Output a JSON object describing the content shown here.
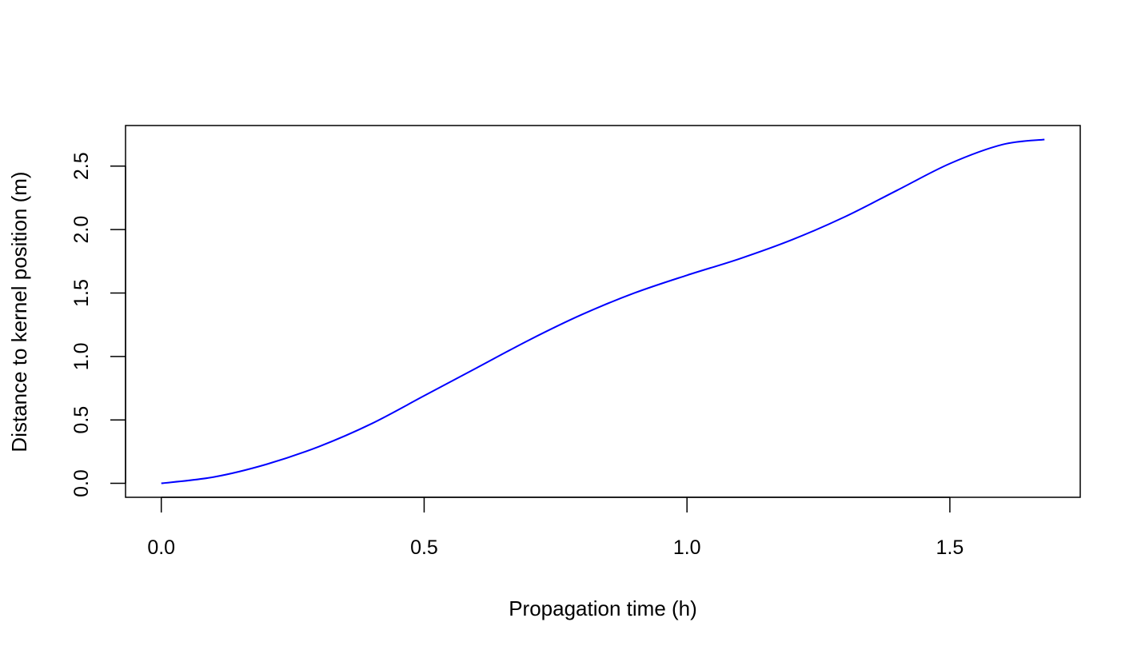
{
  "chart_data": {
    "type": "line",
    "title": "",
    "xlabel": "Propagation time (h)",
    "ylabel": "Distance to kernel position (m)",
    "xlim": [
      -0.068,
      1.748
    ],
    "ylim": [
      -0.11,
      2.82
    ],
    "x_ticks": [
      0.0,
      0.5,
      1.0,
      1.5
    ],
    "x_tick_labels": [
      "0.0",
      "0.5",
      "1.0",
      "1.5"
    ],
    "y_ticks": [
      0.0,
      0.5,
      1.0,
      1.5,
      2.0,
      2.5
    ],
    "y_tick_labels": [
      "0.0",
      "0.5",
      "1.0",
      "1.5",
      "2.0",
      "2.5"
    ],
    "grid": false,
    "legend": "none",
    "series": [
      {
        "color": "#0000ff",
        "x": [
          0.0,
          0.1,
          0.2,
          0.3,
          0.4,
          0.5,
          0.6,
          0.7,
          0.8,
          0.9,
          1.0,
          1.1,
          1.2,
          1.3,
          1.4,
          1.5,
          1.6,
          1.68
        ],
        "y": [
          0.0,
          0.05,
          0.15,
          0.29,
          0.47,
          0.69,
          0.91,
          1.13,
          1.33,
          1.5,
          1.64,
          1.77,
          1.92,
          2.1,
          2.31,
          2.52,
          2.67,
          2.71
        ]
      }
    ]
  }
}
